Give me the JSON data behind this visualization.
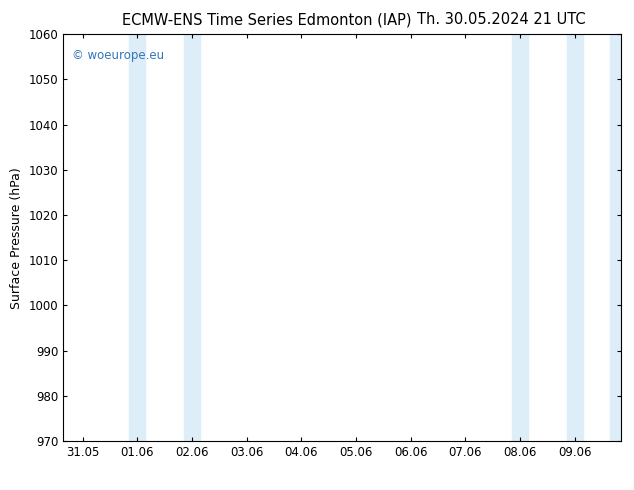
{
  "title_left": "ECMW-ENS Time Series Edmonton (IAP)",
  "title_right": "Th. 30.05.2024 21 UTC",
  "ylabel": "Surface Pressure (hPa)",
  "ylim": [
    970,
    1060
  ],
  "yticks": [
    970,
    980,
    990,
    1000,
    1010,
    1020,
    1030,
    1040,
    1050,
    1060
  ],
  "xtick_labels": [
    "31.05",
    "01.06",
    "02.06",
    "03.06",
    "04.06",
    "05.06",
    "06.06",
    "07.06",
    "08.06",
    "09.06"
  ],
  "xtick_positions": [
    0,
    1,
    2,
    3,
    4,
    5,
    6,
    7,
    8,
    9
  ],
  "shaded_bands": [
    {
      "x_start": 0.85,
      "x_end": 1.15
    },
    {
      "x_start": 1.85,
      "x_end": 2.15
    },
    {
      "x_start": 7.85,
      "x_end": 8.15
    },
    {
      "x_start": 8.85,
      "x_end": 9.15
    },
    {
      "x_start": 9.65,
      "x_end": 9.85
    }
  ],
  "shade_color": "#ddeef9",
  "watermark_text": "© woeurope.eu",
  "watermark_color": "#3377bb",
  "background_color": "#ffffff",
  "plot_background": "#ffffff",
  "title_fontsize": 10.5,
  "tick_fontsize": 8.5,
  "ylabel_fontsize": 9,
  "xlim": [
    -0.35,
    9.85
  ]
}
